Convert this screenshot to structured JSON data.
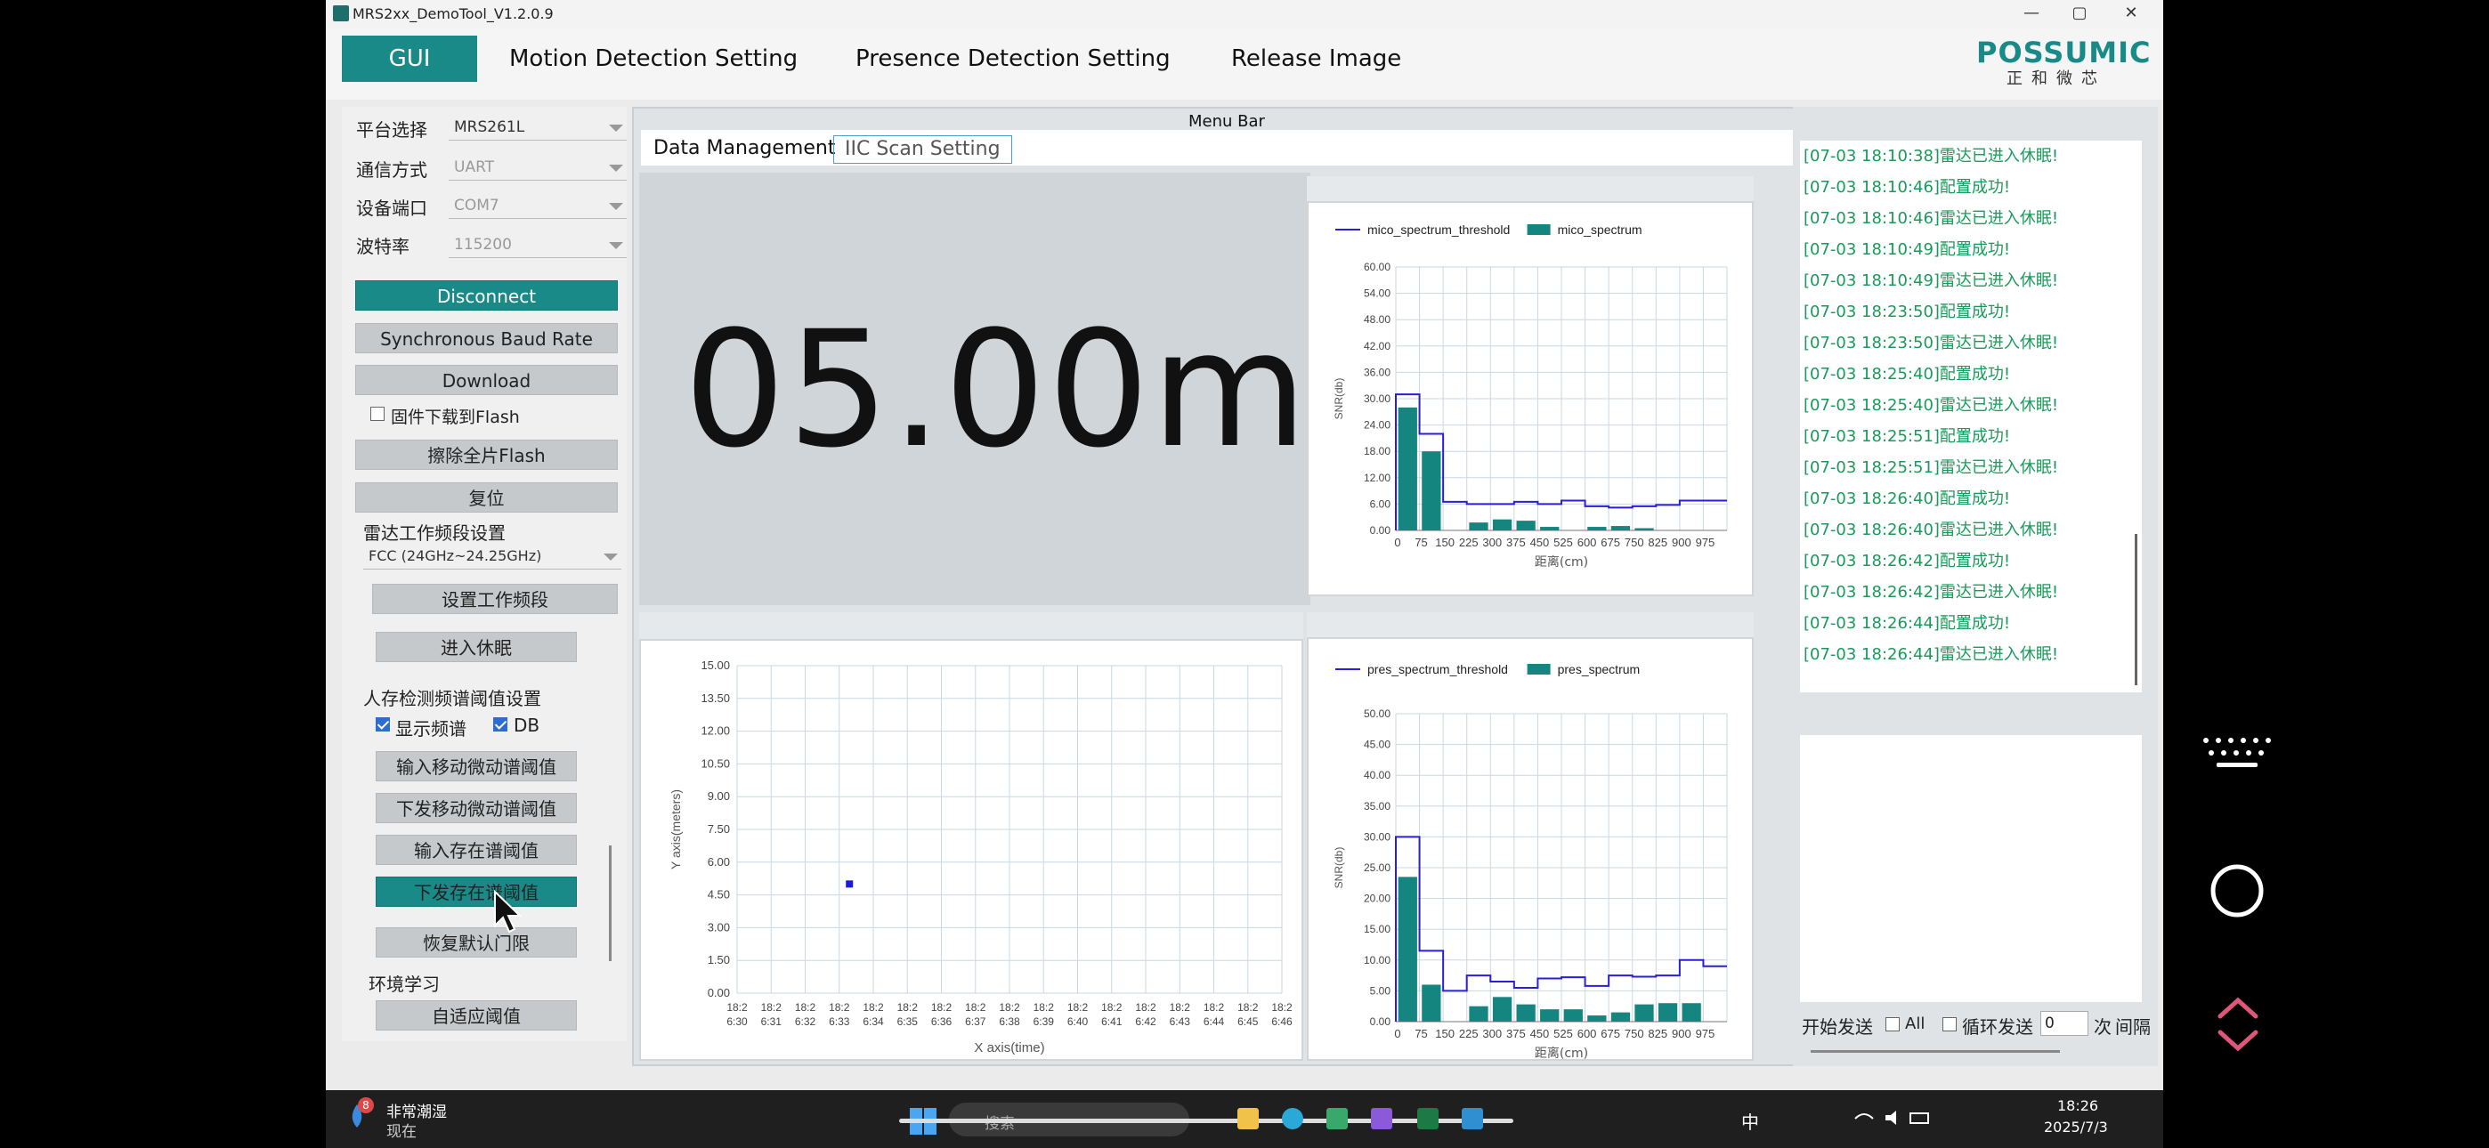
{
  "window": {
    "title": "MRS2xx_DemoTool_V1.2.0.9",
    "controls": [
      "—",
      "▢",
      "✕"
    ]
  },
  "nav": {
    "tabs": [
      "GUI",
      "Motion Detection Setting",
      "Presence Detection Setting",
      "Release Image"
    ],
    "active": "GUI"
  },
  "logo": {
    "brand": "POSSUMIC",
    "sub": "正和微芯"
  },
  "left": {
    "platform_label": "平台选择",
    "platform_value": "MRS261L",
    "comm_label": "通信方式",
    "comm_value": "UART",
    "port_label": "设备端口",
    "port_value": "COM7",
    "baud_label": "波特率",
    "baud_value": "115200",
    "disconnect": "Disconnect",
    "sync_baud": "Synchronous Baud Rate",
    "download": "Download",
    "flash_check": "固件下载到Flash",
    "erase_flash": "擦除全片Flash",
    "reset": "复位",
    "band_section": "雷达工作频段设置",
    "band_value": "FCC (24GHz~24.25GHz)",
    "set_band": "设置工作频段",
    "sleep": "进入休眠",
    "presence_section": "人存检测频谱阈值设置",
    "show_spectrum": "显示频谱",
    "db": "DB",
    "input_motion": "输入移动微动谱阈值",
    "send_motion": "下发移动微动谱阈值",
    "input_presence": "输入存在谱阈值",
    "send_presence": "下发存在谱阈值",
    "restore": "恢复默认门限",
    "env_section": "环境学习",
    "adaptive": "自适应阈值"
  },
  "center": {
    "menubar": "Menu Bar",
    "subtabs": [
      "Data Management",
      "IIC Scan Setting"
    ],
    "distance": "05.00m"
  },
  "chart_data": [
    {
      "type": "bar",
      "title": "",
      "legend": [
        "mico_spectrum_threshold",
        "mico_spectrum"
      ],
      "xlabel": "距离(cm)",
      "ylabel": "SNR(db)",
      "categories": [
        "0",
        "75",
        "150",
        "225",
        "300",
        "375",
        "450",
        "525",
        "600",
        "675",
        "750",
        "825",
        "900",
        "975"
      ],
      "ylim": [
        0,
        60
      ],
      "yticks": [
        "60.00",
        "54.00",
        "48.00",
        "42.00",
        "36.00",
        "30.00",
        "24.00",
        "18.00",
        "12.00",
        "6.00",
        "0.00"
      ],
      "series": [
        {
          "name": "mico_spectrum_threshold",
          "type": "step",
          "values": [
            31,
            22,
            6.5,
            6,
            6,
            6.5,
            6,
            6.8,
            5.5,
            5.2,
            5.5,
            5.8,
            6.8,
            6.8
          ]
        },
        {
          "name": "mico_spectrum",
          "type": "bar",
          "values": [
            28,
            18,
            0,
            1.8,
            2.5,
            2.2,
            0.8,
            0,
            0.8,
            1,
            0.5,
            0,
            0,
            0
          ]
        }
      ]
    },
    {
      "type": "bar",
      "title": "",
      "legend": [
        "pres_spectrum_threshold",
        "pres_spectrum"
      ],
      "xlabel": "距离(cm)",
      "ylabel": "SNR(db)",
      "categories": [
        "0",
        "75",
        "150",
        "225",
        "300",
        "375",
        "450",
        "525",
        "600",
        "675",
        "750",
        "825",
        "900",
        "975"
      ],
      "ylim": [
        0,
        50
      ],
      "yticks": [
        "50.00",
        "45.00",
        "40.00",
        "35.00",
        "30.00",
        "25.00",
        "20.00",
        "15.00",
        "10.00",
        "5.00",
        "0.00"
      ],
      "series": [
        {
          "name": "pres_spectrum_threshold",
          "type": "step",
          "values": [
            30,
            11.5,
            5,
            7.5,
            6.5,
            5.5,
            7,
            7.2,
            5.8,
            7.5,
            7.3,
            7.5,
            10,
            9
          ]
        },
        {
          "name": "pres_spectrum",
          "type": "bar",
          "values": [
            23.5,
            6,
            0,
            2.5,
            4,
            2.8,
            2,
            2,
            1,
            1.5,
            2.8,
            3,
            3,
            0
          ]
        }
      ]
    },
    {
      "type": "scatter",
      "title": "",
      "xlabel": "X axis(time)",
      "ylabel": "Y axis(meters)",
      "ylim": [
        0,
        15
      ],
      "yticks": [
        "15.00",
        "13.50",
        "12.00",
        "10.50",
        "9.00",
        "7.50",
        "6.00",
        "4.50",
        "3.00",
        "1.50",
        "0.00"
      ],
      "xticks": [
        "18:26:30",
        "18:26:31",
        "18:26:32",
        "18:26:33",
        "18:26:34",
        "18:26:35",
        "18:26:36",
        "18:26:37",
        "18:26:38",
        "18:26:39",
        "18:26:40",
        "18:26:41",
        "18:26:42",
        "18:26:43",
        "18:26:44",
        "18:26:45",
        "18:26:46"
      ],
      "points": [
        {
          "x": "18:26:33",
          "y": 5.0
        }
      ]
    }
  ],
  "log": {
    "lines": [
      "[07-03 18:10:38]雷达已进入休眠!",
      "[07-03 18:10:46]配置成功!",
      "[07-03 18:10:46]雷达已进入休眠!",
      "[07-03 18:10:49]配置成功!",
      "[07-03 18:10:49]雷达已进入休眠!",
      "[07-03 18:23:50]配置成功!",
      "[07-03 18:23:50]雷达已进入休眠!",
      "[07-03 18:25:40]配置成功!",
      "[07-03 18:25:40]雷达已进入休眠!",
      "[07-03 18:25:51]配置成功!",
      "[07-03 18:25:51]雷达已进入休眠!",
      "[07-03 18:26:40]配置成功!",
      "[07-03 18:26:40]雷达已进入休眠!",
      "[07-03 18:26:42]配置成功!",
      "[07-03 18:26:42]雷达已进入休眠!",
      "[07-03 18:26:44]配置成功!",
      "[07-03 18:26:44]雷达已进入休眠!"
    ]
  },
  "send": {
    "start": "开始发送",
    "all": "All",
    "loop": "循环发送",
    "count": "0",
    "times": "次",
    "interval": "间隔"
  },
  "taskbar": {
    "weather_badge": "8",
    "weather": "非常潮湿",
    "now": "现在",
    "search_placeholder": "搜索",
    "ime": "中",
    "time": "18:26",
    "date": "2025/7/3"
  },
  "colors": {
    "accent": "#1a8a88",
    "threshold_line": "#2a1fd6",
    "bar": "#15857f",
    "log_text": "#1a9a5a"
  }
}
